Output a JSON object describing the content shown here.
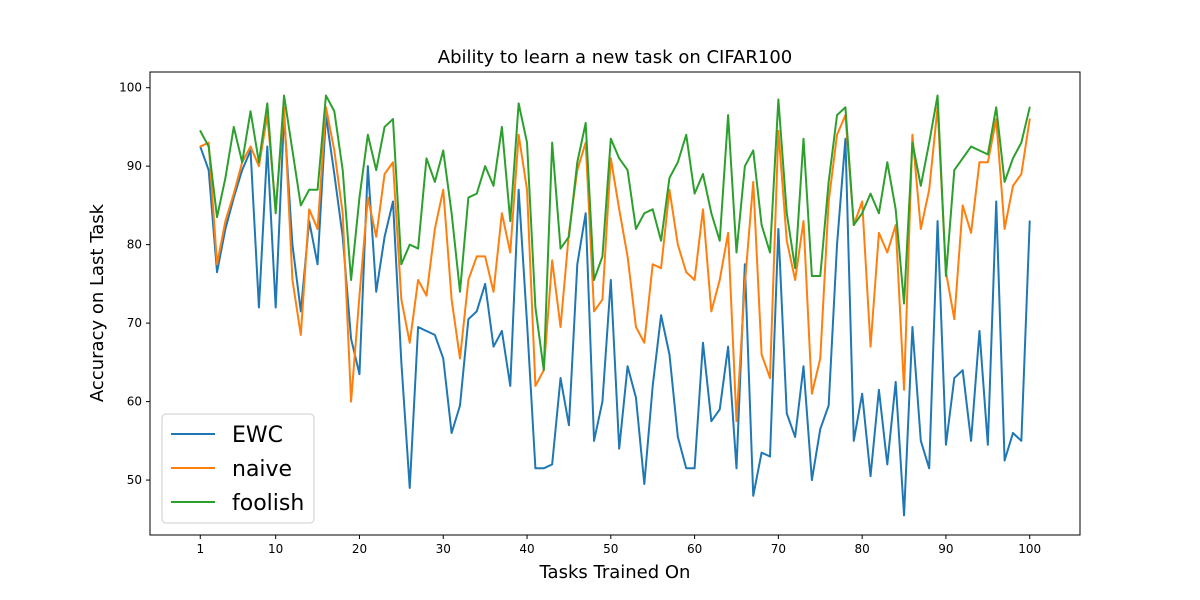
{
  "chart_data": {
    "type": "line",
    "title": "Ability to learn a new task on CIFAR100",
    "xlabel": "Tasks Trained On",
    "ylabel": "Accuracy on Last Task",
    "xlim": [
      -5,
      106
    ],
    "ylim": [
      43,
      102
    ],
    "xticks": [
      1,
      10,
      20,
      30,
      40,
      50,
      60,
      70,
      80,
      90,
      100
    ],
    "yticks": [
      50,
      60,
      70,
      80,
      90,
      100
    ],
    "grid": false,
    "legend_position": "lower-left",
    "series": [
      {
        "name": "EWC",
        "color": "#1f77b4",
        "values": [
          92.5,
          89.5,
          76.5,
          82,
          86,
          89.5,
          92,
          72,
          92.5,
          72,
          96.5,
          80,
          71.5,
          83,
          77.5,
          96.5,
          89,
          81,
          68,
          63.5,
          90,
          74,
          81,
          85.5,
          65,
          49,
          69.5,
          69,
          68.5,
          65.5,
          56,
          59.5,
          70.5,
          71.5,
          75,
          67,
          69,
          62,
          87,
          70,
          51.5,
          51.5,
          52,
          63,
          57,
          77.5,
          84,
          55,
          60,
          75.5,
          54,
          64.5,
          60.5,
          49.5,
          62,
          71,
          66,
          55.5,
          51.5,
          51.5,
          67.5,
          57.5,
          59,
          67,
          51.5,
          77.5,
          48,
          53.5,
          53,
          82,
          58.5,
          55.5,
          64.5,
          50,
          56.5,
          59.5,
          80,
          93.5,
          55,
          61,
          50.5,
          61.5,
          52,
          62.5,
          45.5,
          69.5,
          55,
          51.5,
          83,
          54.5,
          63,
          64,
          55,
          69,
          54.5,
          85.5,
          52.5,
          56,
          55,
          83
        ]
      },
      {
        "name": "naive",
        "color": "#ff7f0e",
        "values": [
          92.5,
          93,
          77.5,
          83,
          86.5,
          90.5,
          92.5,
          90,
          96.5,
          84.5,
          97.5,
          75.5,
          68.5,
          84.5,
          82,
          97.5,
          92,
          84,
          60,
          73.5,
          86,
          81,
          89,
          90.5,
          73,
          67.5,
          75.5,
          73.5,
          82,
          87,
          73,
          65.5,
          75.5,
          78.5,
          78.5,
          74,
          84,
          79,
          94,
          87,
          62,
          64,
          78,
          69.5,
          81.5,
          89.5,
          93,
          71.5,
          73,
          91,
          84.5,
          78.5,
          69.5,
          67.5,
          77.5,
          77,
          87,
          80,
          76.5,
          75.5,
          84.5,
          71.5,
          75.5,
          81.5,
          57.5,
          75,
          88,
          66,
          63,
          94.5,
          80.5,
          75.5,
          83,
          61,
          65.5,
          85.5,
          94,
          96.5,
          82.5,
          85.5,
          67,
          81.5,
          79,
          82.5,
          61.5,
          94,
          82,
          87,
          97.5,
          76.5,
          70.5,
          85,
          81.5,
          90.5,
          90.5,
          96,
          82,
          87.5,
          89,
          96
        ]
      },
      {
        "name": "foolish",
        "color": "#2ca02c",
        "values": [
          94.5,
          92.5,
          83.5,
          88.5,
          95,
          90.5,
          97,
          90.5,
          98,
          84,
          99,
          92,
          85,
          87,
          87,
          99,
          97,
          89.5,
          75.5,
          86,
          94,
          89.5,
          95,
          96,
          77.5,
          80,
          79.5,
          91,
          88,
          92,
          84,
          74,
          86,
          86.5,
          90,
          87.5,
          95,
          83,
          98,
          93,
          72,
          64,
          93,
          79.5,
          81,
          90.5,
          95.5,
          75.5,
          78.5,
          93.5,
          91,
          89.5,
          82,
          84,
          84.5,
          80.5,
          88.5,
          90.5,
          94,
          86.5,
          89,
          84,
          80.5,
          96.5,
          79,
          90,
          92,
          82.5,
          79,
          98.5,
          84,
          77,
          93.5,
          76,
          76,
          88,
          96.5,
          97.5,
          82.5,
          84,
          86.5,
          84,
          90.5,
          84.5,
          72.5,
          93,
          87.5,
          93,
          99,
          76,
          89.5,
          91,
          92.5,
          92,
          91.5,
          97.5,
          88,
          91,
          93,
          97.5
        ]
      }
    ]
  }
}
